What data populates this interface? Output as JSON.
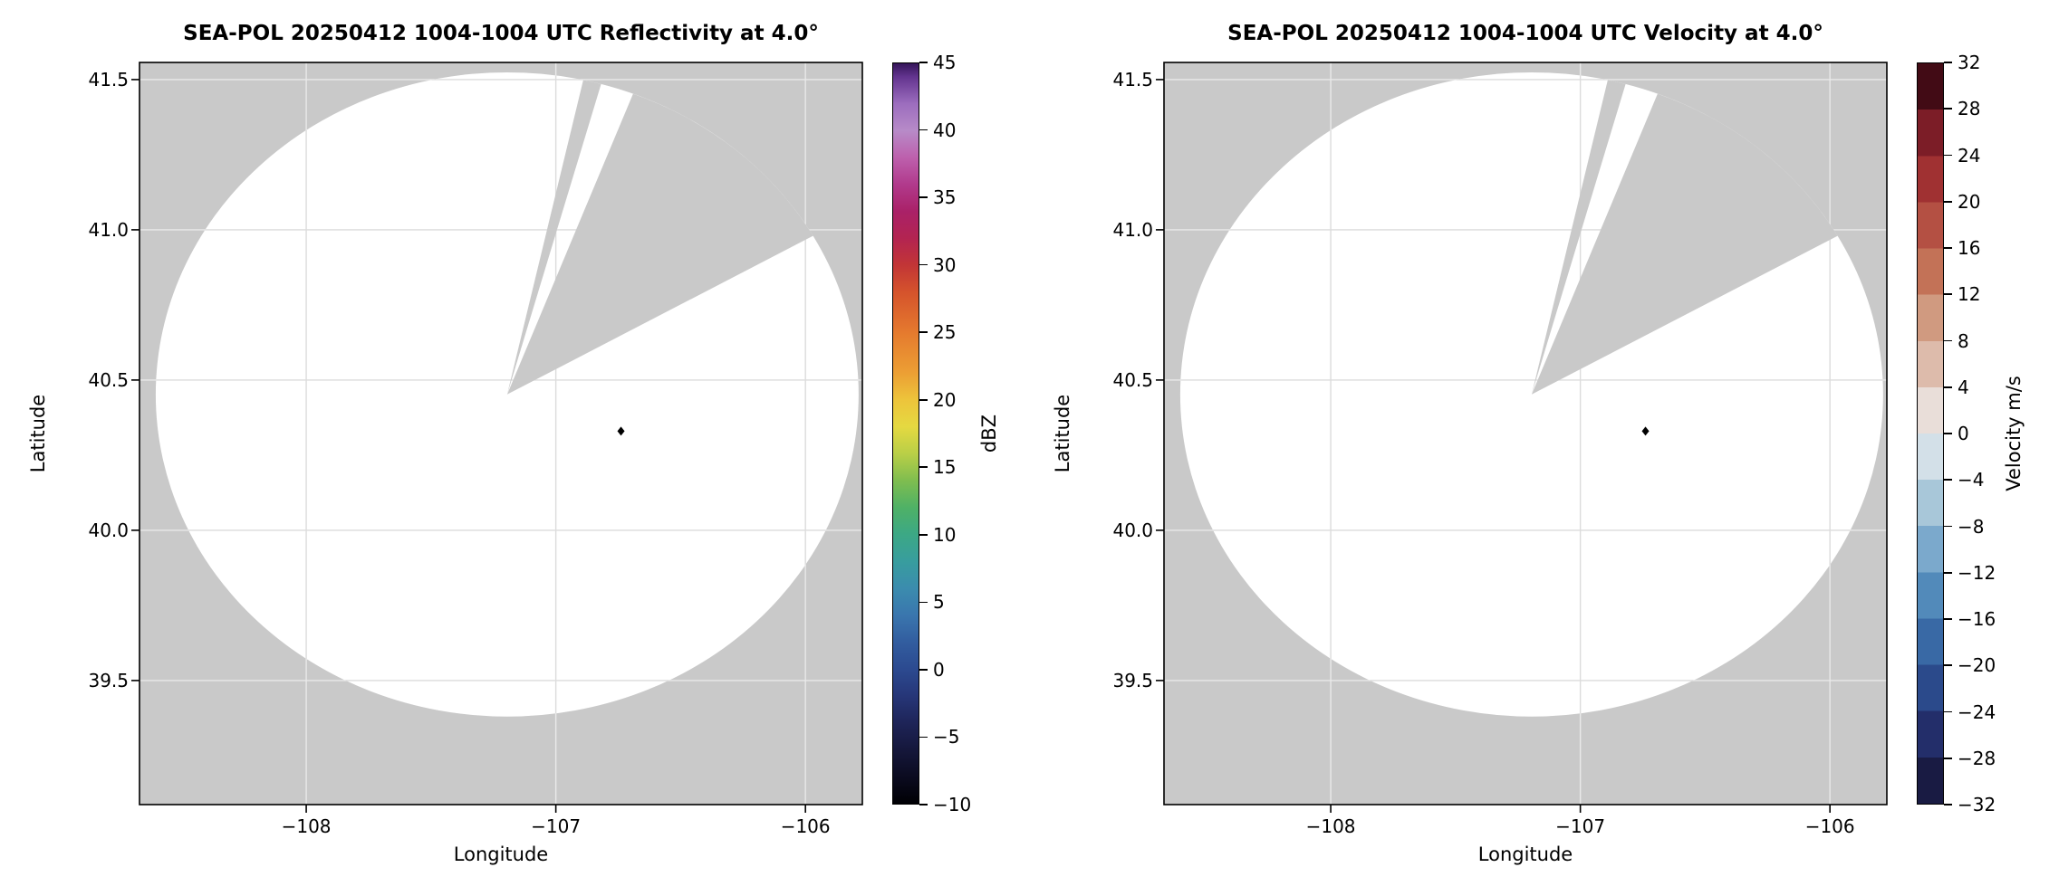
{
  "figure": {
    "background": "#ffffff",
    "masked_color": "#c9c9c9",
    "coverage_color": "#ffffff",
    "grid_color_over_mask": "#e9e9e9",
    "grid_color_over_coverage": "#dcdcdc",
    "radar": {
      "center_lon": -107.195,
      "center_lat": 40.452,
      "radius_lon_deg": 1.408,
      "radius_lat_deg": 1.072,
      "missing_wedges_azimuth_deg": [
        [
          12.5,
          15.5
        ],
        [
          21.0,
          60.5
        ]
      ],
      "marker_lon": -106.739,
      "marker_lat": 40.33,
      "marker_color": "#000000"
    },
    "panels": [
      {
        "title": "SEA-POL 20250412 1004-1004 UTC Reflectivity at 4.0°",
        "xlabel": "Longitude",
        "ylabel": "Latitude",
        "xlim": [
          -108.668,
          -105.772
        ],
        "ylim": [
          39.087,
          41.557
        ],
        "xticks": [
          -108,
          -107,
          -106
        ],
        "xtick_labels": [
          "−108",
          "−107",
          "−106"
        ],
        "yticks": [
          39.5,
          40.0,
          40.5,
          41.0,
          41.5
        ],
        "ytick_labels": [
          "39.5",
          "40.0",
          "40.5",
          "41.0",
          "41.5"
        ],
        "colorbar": {
          "label": "dBZ",
          "min": -10,
          "max": 45,
          "style": "continuous",
          "ticks": [
            -10,
            -5,
            0,
            5,
            10,
            15,
            20,
            25,
            30,
            35,
            40,
            45
          ],
          "tick_labels": [
            "−10",
            "−5",
            "0",
            "5",
            "10",
            "15",
            "20",
            "25",
            "30",
            "35",
            "40",
            "45"
          ],
          "stops": [
            {
              "v": -10,
              "c": "#000004"
            },
            {
              "v": -8,
              "c": "#0b0b20"
            },
            {
              "v": -6,
              "c": "#15173b"
            },
            {
              "v": -4,
              "c": "#1e2458"
            },
            {
              "v": -2,
              "c": "#263678"
            },
            {
              "v": 0,
              "c": "#2c4a90"
            },
            {
              "v": 2,
              "c": "#325d9f"
            },
            {
              "v": 4,
              "c": "#3a76ae"
            },
            {
              "v": 6,
              "c": "#3b8cae"
            },
            {
              "v": 8,
              "c": "#389d9e"
            },
            {
              "v": 10,
              "c": "#3ca885"
            },
            {
              "v": 12,
              "c": "#4fb166"
            },
            {
              "v": 14,
              "c": "#7fbd4f"
            },
            {
              "v": 16,
              "c": "#b9cf47"
            },
            {
              "v": 18,
              "c": "#e5d941"
            },
            {
              "v": 20,
              "c": "#edc43b"
            },
            {
              "v": 22,
              "c": "#ec9f34"
            },
            {
              "v": 25,
              "c": "#e57a2e"
            },
            {
              "v": 28,
              "c": "#d5532c"
            },
            {
              "v": 30,
              "c": "#c23536"
            },
            {
              "v": 32,
              "c": "#b32451"
            },
            {
              "v": 34,
              "c": "#aa2168"
            },
            {
              "v": 36,
              "c": "#b13a8c"
            },
            {
              "v": 38,
              "c": "#bd60ad"
            },
            {
              "v": 40,
              "c": "#b78bc8"
            },
            {
              "v": 42,
              "c": "#9c6dbe"
            },
            {
              "v": 44,
              "c": "#63348f"
            },
            {
              "v": 45,
              "c": "#341559"
            }
          ]
        }
      },
      {
        "title": "SEA-POL 20250412 1004-1004 UTC Velocity at 4.0°",
        "xlabel": "Longitude",
        "ylabel": "Latitude",
        "xlim": [
          -108.668,
          -105.772
        ],
        "ylim": [
          39.087,
          41.557
        ],
        "xticks": [
          -108,
          -107,
          -106
        ],
        "xtick_labels": [
          "−108",
          "−107",
          "−106"
        ],
        "yticks": [
          39.5,
          40.0,
          40.5,
          41.0,
          41.5
        ],
        "ytick_labels": [
          "39.5",
          "40.0",
          "40.5",
          "41.0",
          "41.5"
        ],
        "colorbar": {
          "label": "Velocity m/s",
          "min": -32,
          "max": 32,
          "style": "discrete",
          "ticks": [
            -32,
            -28,
            -24,
            -20,
            -16,
            -12,
            -8,
            -4,
            0,
            4,
            8,
            12,
            16,
            20,
            24,
            28,
            32
          ],
          "tick_labels": [
            "−32",
            "−28",
            "−24",
            "−20",
            "−16",
            "−12",
            "−8",
            "−4",
            "0",
            "4",
            "8",
            "12",
            "16",
            "20",
            "24",
            "28",
            "32"
          ],
          "segments": [
            "#191b43",
            "#232e6a",
            "#2b4a8b",
            "#3969a5",
            "#528aba",
            "#7ba9cc",
            "#a8c7d9",
            "#d3e0e8",
            "#e9ded9",
            "#ddbbab",
            "#d09a80",
            "#c37257",
            "#b45043",
            "#a03132",
            "#7c1d27",
            "#420b15"
          ]
        }
      }
    ]
  },
  "chart_data": [
    {
      "type": "heatmap",
      "title": "SEA-POL 20250412 1004-1004 UTC Reflectivity at 4.0°",
      "xlabel": "Longitude",
      "ylabel": "Latitude",
      "xlim": [
        -108.67,
        -105.77
      ],
      "ylim": [
        39.09,
        41.56
      ],
      "xticks": [
        -108,
        -107,
        -106
      ],
      "yticks": [
        39.5,
        40.0,
        40.5,
        41.0,
        41.5
      ],
      "field": "reflectivity",
      "units": "dBZ",
      "colorbar_range": [
        -10,
        45
      ],
      "colorbar_ticks": [
        -10,
        -5,
        0,
        5,
        10,
        15,
        20,
        25,
        30,
        35,
        40,
        45
      ],
      "grid": true,
      "legend_position": "right-colorbar",
      "radar_coverage": {
        "center_lon": -107.19,
        "center_lat": 40.45,
        "radius_deg_lat": 1.07,
        "missing_azimuth_sectors_deg": [
          [
            12.5,
            15.5
          ],
          [
            21.0,
            60.5
          ]
        ]
      },
      "radar_marker": {
        "lon": -106.74,
        "lat": 40.33
      },
      "data_notes": "Radar coverage disc contains no visible echoes; entire scanned area renders as blank (white) over the gray masked background."
    },
    {
      "type": "heatmap",
      "title": "SEA-POL 20250412 1004-1004 UTC Velocity at 4.0°",
      "xlabel": "Longitude",
      "ylabel": "Latitude",
      "xlim": [
        -108.67,
        -105.77
      ],
      "ylim": [
        39.09,
        41.56
      ],
      "xticks": [
        -108,
        -107,
        -106
      ],
      "yticks": [
        39.5,
        40.0,
        40.5,
        41.0,
        41.5
      ],
      "field": "velocity",
      "units": "Velocity m/s",
      "colorbar_range": [
        -32,
        32
      ],
      "colorbar_ticks": [
        -32,
        -28,
        -24,
        -20,
        -16,
        -12,
        -8,
        -4,
        0,
        4,
        8,
        12,
        16,
        20,
        24,
        28,
        32
      ],
      "grid": true,
      "legend_position": "right-colorbar",
      "radar_coverage": {
        "center_lon": -107.19,
        "center_lat": 40.45,
        "radius_deg_lat": 1.07,
        "missing_azimuth_sectors_deg": [
          [
            12.5,
            15.5
          ],
          [
            21.0,
            60.5
          ]
        ]
      },
      "radar_marker": {
        "lon": -106.74,
        "lat": 40.33
      },
      "data_notes": "Radar coverage disc contains no visible velocity data; entire scanned area renders as blank (white) over the gray masked background."
    }
  ]
}
